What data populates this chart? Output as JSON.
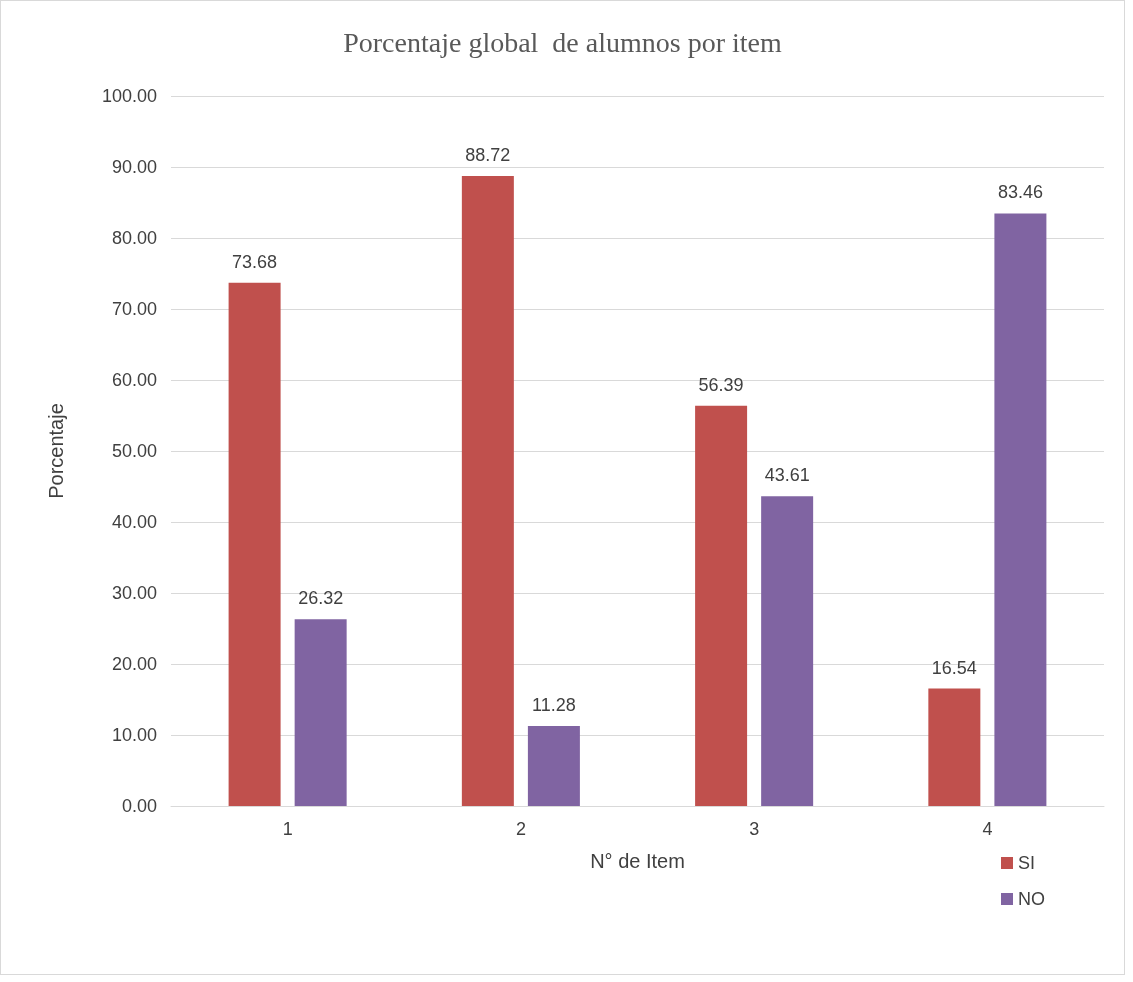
{
  "chart_data": {
    "type": "bar",
    "title": "Porcentaje global  de alumnos por item",
    "xlabel": "N° de Item",
    "ylabel": "Porcentaje",
    "categories": [
      "1",
      "2",
      "3",
      "4"
    ],
    "series": [
      {
        "name": "SI",
        "color": "#c0504d",
        "values": [
          73.68,
          88.72,
          56.39,
          16.54
        ]
      },
      {
        "name": "NO",
        "color": "#8064a2",
        "values": [
          26.32,
          11.28,
          43.61,
          83.46
        ]
      }
    ],
    "ylim": [
      0,
      100
    ],
    "yticks": [
      {
        "value": 0,
        "label": "0.00"
      },
      {
        "value": 10,
        "label": "10.00"
      },
      {
        "value": 20,
        "label": "20.00"
      },
      {
        "value": 30,
        "label": "30.00"
      },
      {
        "value": 40,
        "label": "40.00"
      },
      {
        "value": 50,
        "label": "50.00"
      },
      {
        "value": 60,
        "label": "60.00"
      },
      {
        "value": 70,
        "label": "70.00"
      },
      {
        "value": 80,
        "label": "80.00"
      },
      {
        "value": 90,
        "label": "90.00"
      },
      {
        "value": 100,
        "label": "100.00"
      }
    ],
    "grid": true,
    "legend": "bottom right",
    "data_labels": true
  }
}
